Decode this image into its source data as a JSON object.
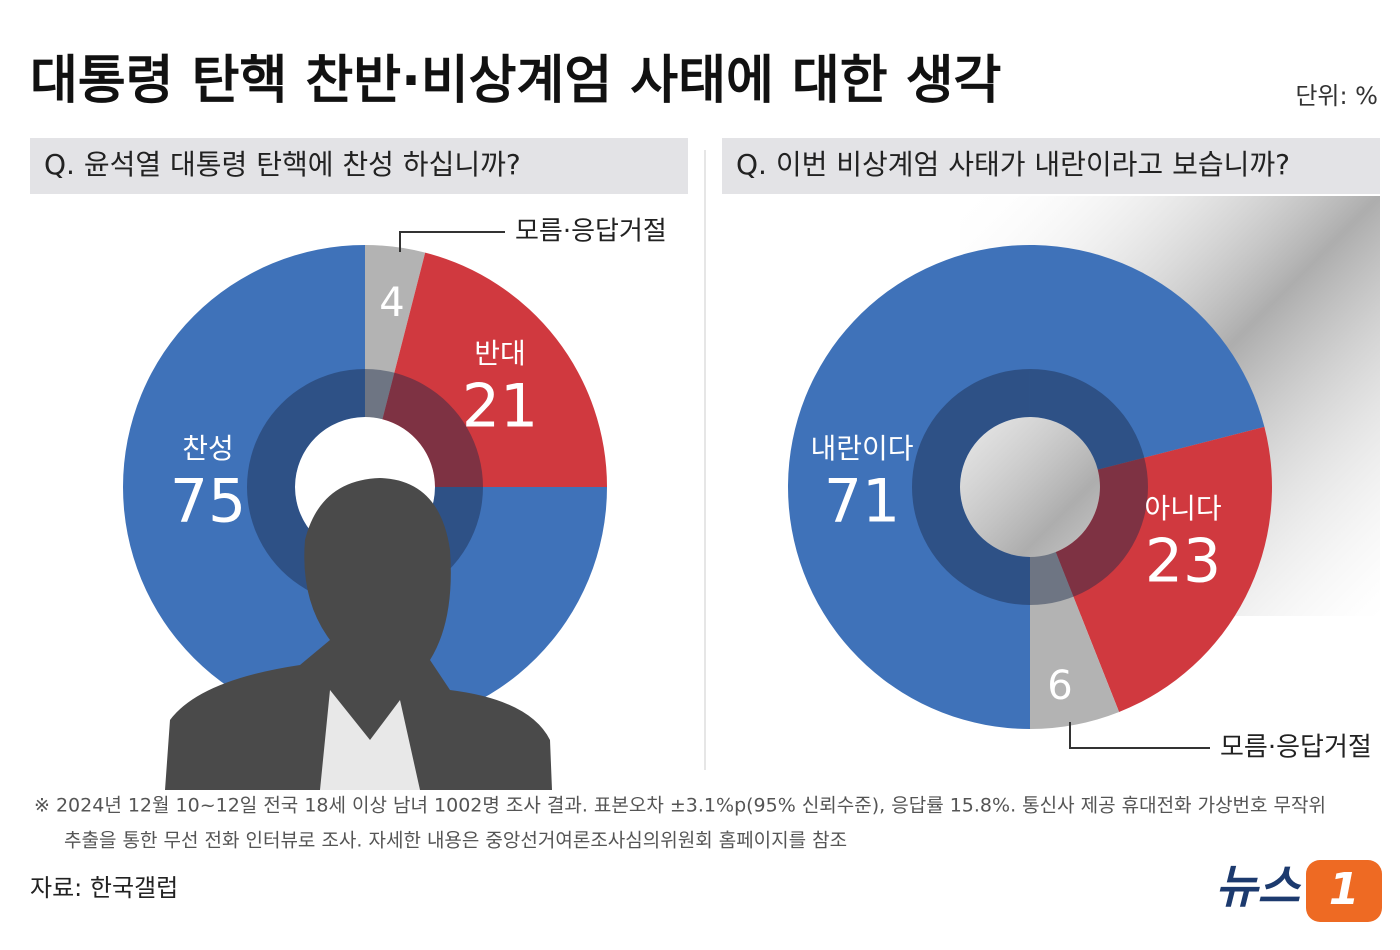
{
  "title": "대통령 탄핵 찬반·비상계엄 사태에 대한 생각",
  "unit": "단위: %",
  "chart_data": [
    {
      "type": "donut",
      "title": "Q. 윤석열 대통령 탄핵에 찬성 하십니까?",
      "categories": [
        "모름·응답거절",
        "반대",
        "찬성"
      ],
      "values": [
        4,
        21,
        75
      ],
      "colors": [
        "#b3b3b3",
        "#d0393f",
        "#3f72b9"
      ]
    },
    {
      "type": "donut",
      "title": "Q. 이번 비상계엄 사태가 내란이라고 보습니까?",
      "categories": [
        "내란이다",
        "아니다",
        "모름·응답거절"
      ],
      "values": [
        71,
        23,
        6
      ],
      "colors": [
        "#3f72b9",
        "#d0393f",
        "#b3b3b3"
      ]
    }
  ],
  "note": [
    "※ 2024년 12월 10~12일 전국 18세 이상 남녀 1002명 조사 결과. 표본오차 ±3.1%p(95% 신뢰수준), 응답률 15.8%. 통신사 제공 휴대전화 가상번호 무작위",
    "추출을 통한 무선 전화 인터뷰로 조사. 자세한 내용은 중앙선거여론조사심의위원회 홈페이지를 참조"
  ],
  "source": "자료: 한국갤럽",
  "logo": {
    "name": "뉴스",
    "mark": "1"
  }
}
